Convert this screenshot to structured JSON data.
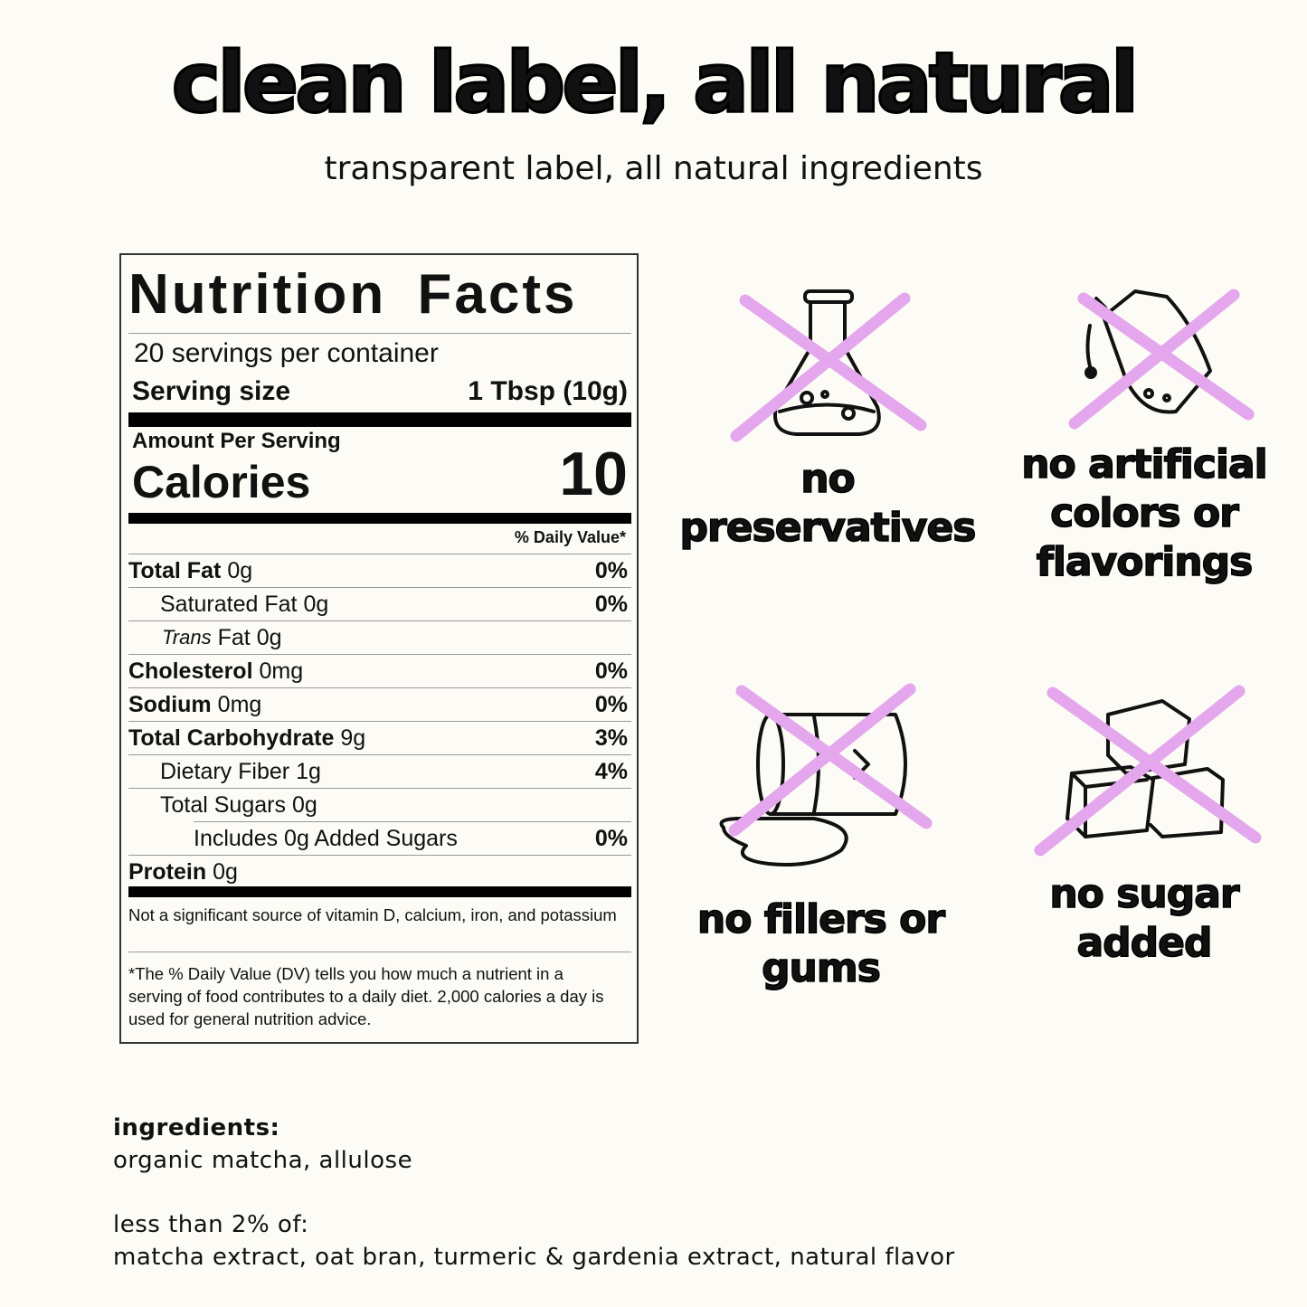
{
  "header": {
    "title": "clean label, all natural",
    "subtitle": "transparent label, all natural ingredients"
  },
  "nutrition": {
    "title": "Nutrition Facts",
    "servings": "20 servings per container",
    "serving_size_label": "Serving size",
    "serving_size": "1 Tbsp (10g)",
    "amount_per_serving": "Amount Per Serving",
    "calories_label": "Calories",
    "calories": "10",
    "dv_header": "% Daily Value*",
    "rows": [
      {
        "name": "Total Fat",
        "amount": "0g",
        "dv": "0%"
      },
      {
        "name": "Saturated Fat",
        "amount": "0g",
        "dv": "0%"
      },
      {
        "name_italic": "Trans",
        "name": "Fat",
        "amount": "0g"
      },
      {
        "name": "Cholesterol",
        "amount": "0mg",
        "dv": "0%"
      },
      {
        "name": "Sodium",
        "amount": "0mg",
        "dv": "0%"
      },
      {
        "name": "Total Carbohydrate",
        "amount": "9g",
        "dv": "3%"
      },
      {
        "name": "Dietary Fiber",
        "amount": "1g",
        "dv": "4%"
      },
      {
        "name": "Total Sugars",
        "amount": "0g"
      },
      {
        "name": "Includes 0g Added Sugars",
        "dv": "0%"
      },
      {
        "name": "Protein",
        "amount": "0g"
      }
    ],
    "footnotes": [
      "Not a significant source of vitamin D, calcium, iron, and potassium",
      "*The % Daily Value (DV) tells you how much a nutrient in a serving of food contributes to a daily diet. 2,000 calories a day is used for general nutrition advice."
    ]
  },
  "claims": [
    {
      "lines": [
        "no",
        "preservatives"
      ]
    },
    {
      "lines": [
        "no artificial",
        "colors or",
        "flavorings"
      ]
    },
    {
      "lines": [
        "no fillers or",
        "gums"
      ]
    },
    {
      "lines": [
        "no sugar",
        "added"
      ]
    }
  ],
  "ingredients": {
    "label": "ingredients:",
    "main": "organic matcha, allulose",
    "minor_label": "less than 2% of:",
    "minor": "matcha extract, oat bran, turmeric & gardenia extract, natural flavor"
  }
}
